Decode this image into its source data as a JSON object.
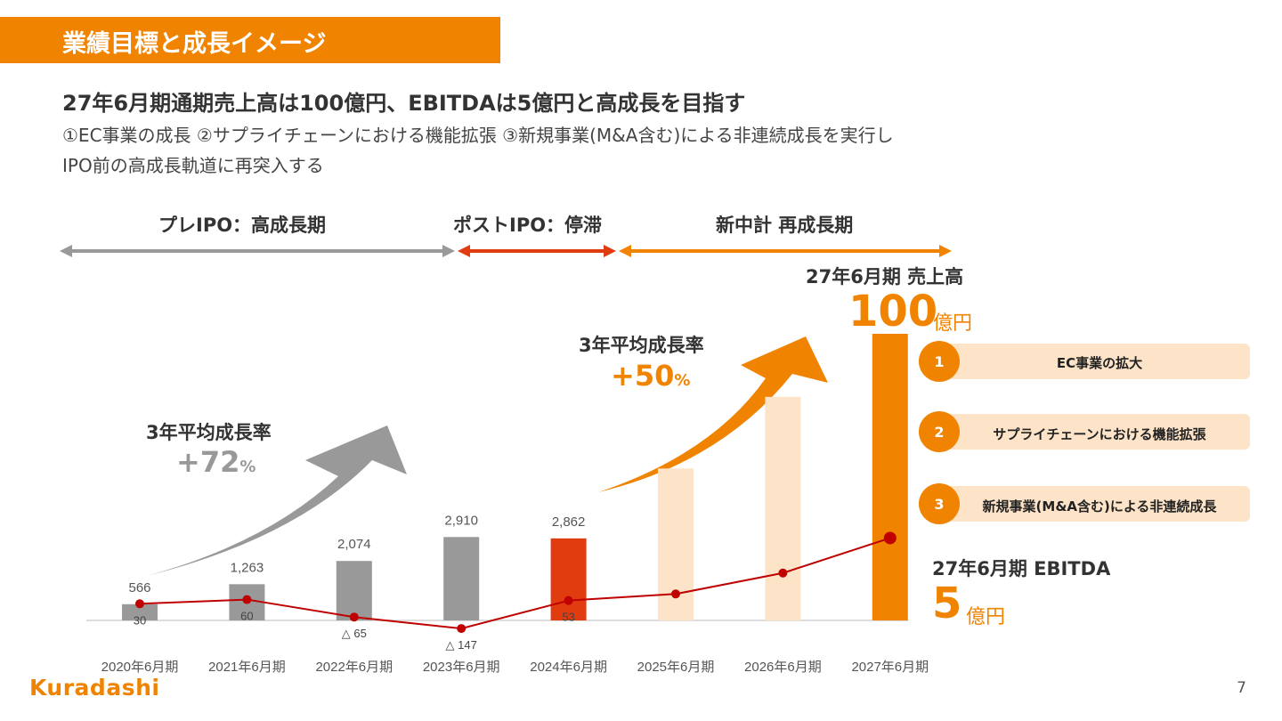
{
  "header": {
    "title": "業績目標と成長イメージ"
  },
  "headline": "27年6月期通期売上高は100億円、EBITDAは5億円と高成長を目指す",
  "subline1": "①EC事業の成長 ②サプライチェーンにおける機能拡張 ③新規事業(M&A含む)による非連続成長を実行し",
  "subline2": "IPO前の高成長軌道に再突入する",
  "phases": [
    {
      "label": "プレIPO：高成長期",
      "color": "#999999"
    },
    {
      "label": "ポストIPO：停滞",
      "color": "#e03c10"
    },
    {
      "label": "新中計 再成長期",
      "color": "#f08300"
    }
  ],
  "cagr_pre": {
    "title": "3年平均成長率",
    "value": "+72",
    "unit": "%"
  },
  "cagr_new": {
    "title": "3年平均成長率",
    "value": "+50",
    "unit": "%"
  },
  "sales_target": {
    "title": "27年6月期 売上高",
    "value": "100",
    "unit": "億円"
  },
  "ebitda_target": {
    "title": "27年6月期 EBITDA",
    "value": "5",
    "unit": "億円"
  },
  "initiatives": [
    {
      "num": "1",
      "label": "EC事業の拡大"
    },
    {
      "num": "2",
      "label": "サプライチェーンにおける機能拡張"
    },
    {
      "num": "3",
      "label": "新規事業(M&A含む)による非連続成長"
    }
  ],
  "chart_data": {
    "type": "bar",
    "categories": [
      "2020年6月期",
      "2021年6月期",
      "2022年6月期",
      "2023年6月期",
      "2024年6月期",
      "2025年6月期",
      "2026年6月期",
      "2027年6月期"
    ],
    "series": [
      {
        "values": [
          566,
          1263,
          2074,
          2910,
          2862,
          5300,
          7800,
          10000
        ],
        "labels": [
          "566",
          "1,263",
          "2,074",
          "2,910",
          "2,862",
          "",
          "",
          ""
        ],
        "colors": [
          "#999999",
          "#999999",
          "#999999",
          "#999999",
          "#e03c10",
          "#fde3c7",
          "#fde3c7",
          "#f08300"
        ]
      },
      {
        "type": "line",
        "values": [
          30,
          60,
          -65,
          -147,
          53,
          100,
          250,
          500
        ],
        "labels": [
          "30",
          "60",
          "△ 65",
          "△ 147",
          "53",
          "",
          "",
          ""
        ],
        "color": "#c00000"
      }
    ]
  },
  "logo": "Kuradashi",
  "page_number": "7"
}
